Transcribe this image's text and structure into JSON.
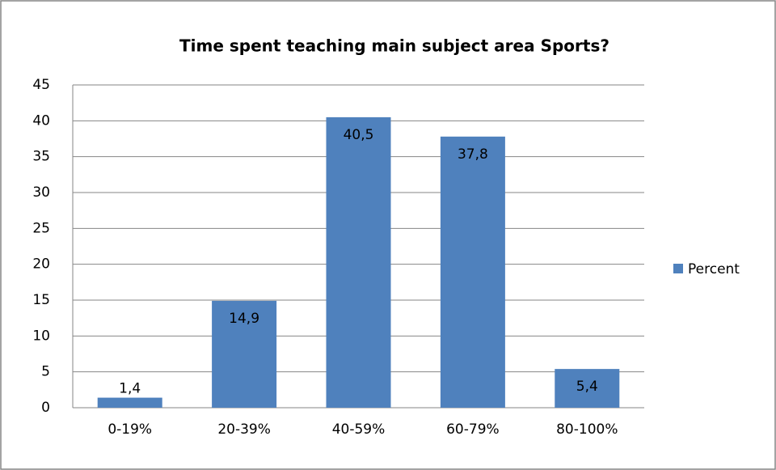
{
  "chart_data": {
    "type": "bar",
    "title": "Time spent teaching main subject area Sports?",
    "categories": [
      "0-19%",
      "20-39%",
      "40-59%",
      "60-79%",
      "80-100%"
    ],
    "series": [
      {
        "name": "Percent",
        "color": "#4f81bd",
        "values": [
          1.4,
          14.9,
          40.5,
          37.8,
          5.4
        ],
        "value_labels": [
          "1,4",
          "14,9",
          "40,5",
          "37,8",
          "5,4"
        ]
      }
    ],
    "ylim": [
      0,
      45
    ],
    "yticks": [
      0,
      5,
      10,
      15,
      20,
      25,
      30,
      35,
      40,
      45
    ],
    "grid": true,
    "legend": "right"
  }
}
